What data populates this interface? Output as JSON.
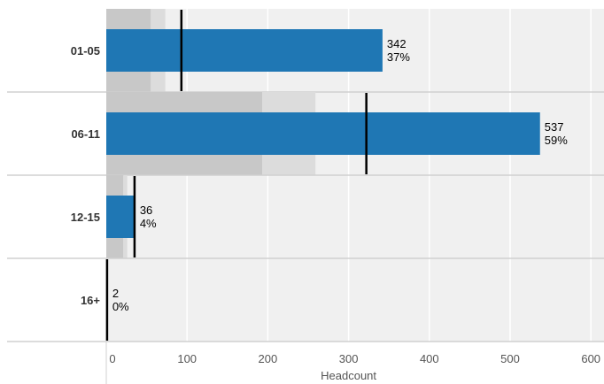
{
  "chart_data": {
    "type": "bar",
    "orientation": "horizontal",
    "subtype": "bullet",
    "categories": [
      "01-05",
      "06-11",
      "12-15",
      "16+"
    ],
    "series": [
      {
        "values": [
          342,
          537,
          36,
          2
        ],
        "labels": [
          "37%",
          "59%",
          "4%",
          "0%"
        ]
      }
    ],
    "targets": [
      93,
      322,
      35,
      1
    ],
    "ranges": [
      [
        55,
        73
      ],
      [
        193,
        259
      ],
      [
        21,
        26
      ],
      [
        0,
        0
      ]
    ],
    "xlabel": "Headcount",
    "ylabel": "",
    "xlim": [
      0,
      600
    ],
    "xticks": [
      0,
      100,
      200,
      300,
      400,
      500,
      600
    ],
    "grid": true,
    "legend": "none",
    "colors": {
      "bar": "#1f77b4",
      "background": "#f0f0f0",
      "range_dark": "#c8c8c8",
      "range_light": "#dcdcdc",
      "target": "#000000",
      "separator": "#d0d0d0",
      "gridline": "#ffffff"
    }
  }
}
